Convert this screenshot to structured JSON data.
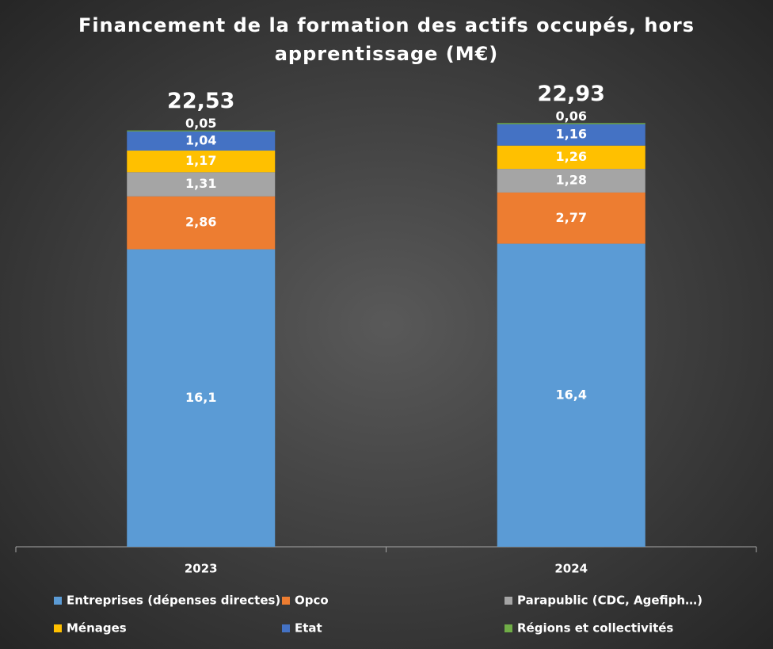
{
  "chart_data": {
    "type": "stacked_bar",
    "title": "Financement de la formation des actifs occupés, hors apprentissage (M€)",
    "categories": [
      "2023",
      "2024"
    ],
    "series": [
      {
        "name": "Entreprises (dépenses directes)",
        "color": "#5b9bd5",
        "values": [
          16.1,
          16.4
        ],
        "value_labels": [
          "16,1",
          "16,4"
        ]
      },
      {
        "name": "Opco",
        "color": "#ed7d31",
        "values": [
          2.86,
          2.77
        ],
        "value_labels": [
          "2,86",
          "2,77"
        ]
      },
      {
        "name": "Parapublic (CDC, Agefiph…)",
        "color": "#a5a5a5",
        "values": [
          1.31,
          1.28
        ],
        "value_labels": [
          "1,31",
          "1,28"
        ]
      },
      {
        "name": "Ménages",
        "color": "#ffc000",
        "values": [
          1.17,
          1.26
        ],
        "value_labels": [
          "1,17",
          "1,26"
        ]
      },
      {
        "name": "Etat",
        "color": "#4472c4",
        "values": [
          1.04,
          1.16
        ],
        "value_labels": [
          "1,04",
          "1,16"
        ]
      },
      {
        "name": "Régions et collectivités",
        "color": "#70ad47",
        "values": [
          0.05,
          0.06
        ],
        "value_labels": [
          "0,05",
          "0,06"
        ]
      }
    ],
    "totals": [
      22.53,
      22.93
    ],
    "total_labels": [
      "22,53",
      "22,93"
    ],
    "ylim": [
      0,
      25
    ],
    "legend": "bottom"
  }
}
